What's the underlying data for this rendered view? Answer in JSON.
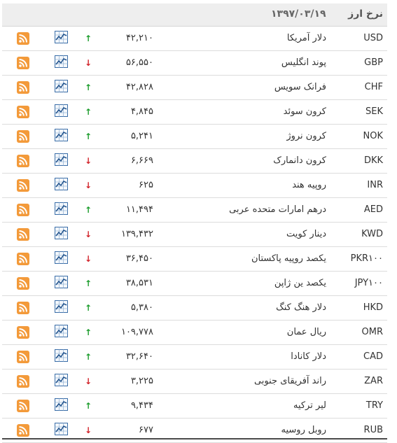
{
  "header": {
    "title": "نرخ ارز",
    "date": "۱۳۹۷/۰۳/۱۹"
  },
  "colors": {
    "up": "#1a9c2b",
    "down": "#d2232a",
    "rss": "#f39a3a",
    "chart": "#3b6ea8"
  },
  "rows": [
    {
      "code": "USD",
      "name": "دلار آمریکا",
      "price": "۴۲,۲۱۰",
      "trend": "up"
    },
    {
      "code": "GBP",
      "name": "پوند انگلیس",
      "price": "۵۶,۵۵۰",
      "trend": "down"
    },
    {
      "code": "CHF",
      "name": "فرانک سویس",
      "price": "۴۲,۸۲۸",
      "trend": "up"
    },
    {
      "code": "SEK",
      "name": "کرون سوئد",
      "price": "۴,۸۴۵",
      "trend": "up"
    },
    {
      "code": "NOK",
      "name": "کرون نروژ",
      "price": "۵,۲۴۱",
      "trend": "up"
    },
    {
      "code": "DKK",
      "name": "کرون دانمارک",
      "price": "۶,۶۶۹",
      "trend": "down"
    },
    {
      "code": "INR",
      "name": "روپیه هند",
      "price": "۶۲۵",
      "trend": "down"
    },
    {
      "code": "AED",
      "name": "درهم امارات متحده عربی",
      "price": "۱۱,۴۹۴",
      "trend": "up"
    },
    {
      "code": "KWD",
      "name": "دینار کویت",
      "price": "۱۳۹,۴۳۲",
      "trend": "down"
    },
    {
      "code": "PKR۱۰۰",
      "name": "یکصد روپیه پاکستان",
      "price": "۳۶,۴۵۰",
      "trend": "down"
    },
    {
      "code": "JPY۱۰۰",
      "name": "یکصد ین ژاپن",
      "price": "۳۸,۵۳۱",
      "trend": "up"
    },
    {
      "code": "HKD",
      "name": "دلار هنگ کنگ",
      "price": "۵,۳۸۰",
      "trend": "up"
    },
    {
      "code": "OMR",
      "name": "ریال عمان",
      "price": "۱۰۹,۷۷۸",
      "trend": "up"
    },
    {
      "code": "CAD",
      "name": "دلار کانادا",
      "price": "۳۲,۶۴۰",
      "trend": "up"
    },
    {
      "code": "ZAR",
      "name": "راند آفریقای جنوبی",
      "price": "۳,۲۲۵",
      "trend": "down"
    },
    {
      "code": "TRY",
      "name": "لیر ترکیه",
      "price": "۹,۴۳۴",
      "trend": "up"
    },
    {
      "code": "RUB",
      "name": "روبل روسیه",
      "price": "۶۷۷",
      "trend": "down"
    }
  ]
}
